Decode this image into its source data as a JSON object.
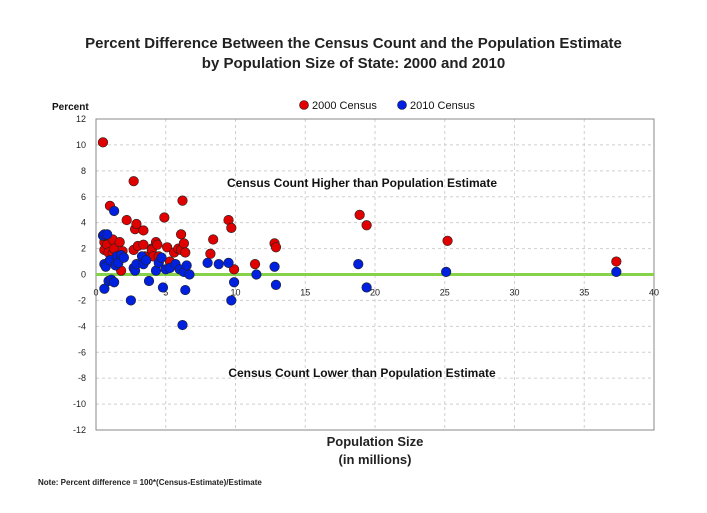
{
  "chart_data": {
    "type": "scatter",
    "title_lines": [
      "Percent Difference Between the Census Count and the Population Estimate",
      "by Population Size of State: 2000 and 2010"
    ],
    "ylabel": "Percent",
    "xlabel_lines": [
      "Population Size",
      "(in millions)"
    ],
    "xlim": [
      0,
      40
    ],
    "ylim": [
      -12,
      12
    ],
    "x_ticks": [
      0,
      5,
      10,
      15,
      20,
      25,
      30,
      35,
      40
    ],
    "y_ticks": [
      -12,
      -10,
      -8,
      -6,
      -4,
      -2,
      0,
      2,
      4,
      6,
      8,
      10,
      12
    ],
    "grid": true,
    "legend_position": "top",
    "annotations": {
      "upper": "Census Count Higher than Population Estimate",
      "lower": "Census Count Lower than Population Estimate"
    },
    "note": "Note: Percent difference = 100*(Census-Estimate)/Estimate",
    "series": [
      {
        "name": "2000 Census",
        "color": "#e00000",
        "points": [
          [
            0.5,
            10.2
          ],
          [
            0.6,
            2.5
          ],
          [
            0.6,
            1.9
          ],
          [
            0.6,
            3.0
          ],
          [
            0.8,
            2.3
          ],
          [
            0.9,
            1.7
          ],
          [
            1.0,
            5.3
          ],
          [
            1.2,
            1.6
          ],
          [
            1.2,
            2.7
          ],
          [
            1.3,
            2.0
          ],
          [
            1.5,
            1.1
          ],
          [
            1.7,
            2.5
          ],
          [
            1.8,
            0.3
          ],
          [
            1.9,
            1.8
          ],
          [
            2.2,
            4.2
          ],
          [
            2.7,
            7.2
          ],
          [
            2.7,
            1.9
          ],
          [
            2.8,
            3.5
          ],
          [
            2.9,
            3.9
          ],
          [
            3.0,
            2.2
          ],
          [
            3.4,
            3.4
          ],
          [
            3.4,
            2.3
          ],
          [
            3.5,
            1.4
          ],
          [
            4.0,
            2.0
          ],
          [
            4.0,
            1.9
          ],
          [
            4.1,
            1.4
          ],
          [
            4.3,
            2.5
          ],
          [
            4.4,
            2.3
          ],
          [
            4.5,
            1.4
          ],
          [
            4.9,
            4.4
          ],
          [
            5.1,
            2.1
          ],
          [
            5.3,
            1.0
          ],
          [
            5.6,
            1.7
          ],
          [
            5.9,
            2.0
          ],
          [
            6.1,
            3.1
          ],
          [
            6.1,
            1.9
          ],
          [
            6.2,
            5.7
          ],
          [
            6.3,
            2.4
          ],
          [
            6.4,
            1.7
          ],
          [
            8.2,
            1.6
          ],
          [
            8.4,
            2.7
          ],
          [
            9.5,
            4.2
          ],
          [
            9.7,
            3.6
          ],
          [
            9.9,
            0.4
          ],
          [
            11.4,
            0.8
          ],
          [
            12.8,
            2.4
          ],
          [
            12.9,
            2.1
          ],
          [
            18.9,
            4.6
          ],
          [
            19.4,
            3.8
          ],
          [
            25.2,
            2.6
          ],
          [
            37.3,
            1.0
          ]
        ]
      },
      {
        "name": "2010 Census",
        "color": "#0020e0",
        "points": [
          [
            0.5,
            3.0
          ],
          [
            0.6,
            0.8
          ],
          [
            0.6,
            -1.1
          ],
          [
            0.6,
            3.1
          ],
          [
            0.7,
            0.6
          ],
          [
            0.8,
            3.1
          ],
          [
            0.9,
            -0.5
          ],
          [
            1.0,
            1.1
          ],
          [
            1.1,
            -0.4
          ],
          [
            1.3,
            4.9
          ],
          [
            1.3,
            -0.6
          ],
          [
            1.4,
            0.7
          ],
          [
            1.5,
            1.4
          ],
          [
            1.6,
            0.9
          ],
          [
            1.8,
            1.5
          ],
          [
            2.0,
            1.3
          ],
          [
            2.5,
            -2.0
          ],
          [
            2.7,
            0.5
          ],
          [
            2.8,
            0.3
          ],
          [
            2.9,
            0.8
          ],
          [
            3.3,
            1.4
          ],
          [
            3.4,
            0.8
          ],
          [
            3.6,
            1.1
          ],
          [
            3.8,
            -0.5
          ],
          [
            4.3,
            0.3
          ],
          [
            4.5,
            0.9
          ],
          [
            4.7,
            1.3
          ],
          [
            4.8,
            -1.0
          ],
          [
            5.0,
            0.4
          ],
          [
            5.3,
            0.5
          ],
          [
            5.7,
            0.8
          ],
          [
            6.0,
            0.4
          ],
          [
            6.2,
            -3.9
          ],
          [
            6.3,
            0.2
          ],
          [
            6.4,
            -1.2
          ],
          [
            6.5,
            0.7
          ],
          [
            6.7,
            0.0
          ],
          [
            8.0,
            0.9
          ],
          [
            8.8,
            0.8
          ],
          [
            9.5,
            0.9
          ],
          [
            9.7,
            -2.0
          ],
          [
            9.9,
            -0.6
          ],
          [
            11.5,
            0.0
          ],
          [
            12.8,
            0.6
          ],
          [
            12.9,
            -0.8
          ],
          [
            18.8,
            0.8
          ],
          [
            19.4,
            -1.0
          ],
          [
            25.1,
            0.2
          ],
          [
            37.3,
            0.2
          ]
        ]
      }
    ]
  }
}
